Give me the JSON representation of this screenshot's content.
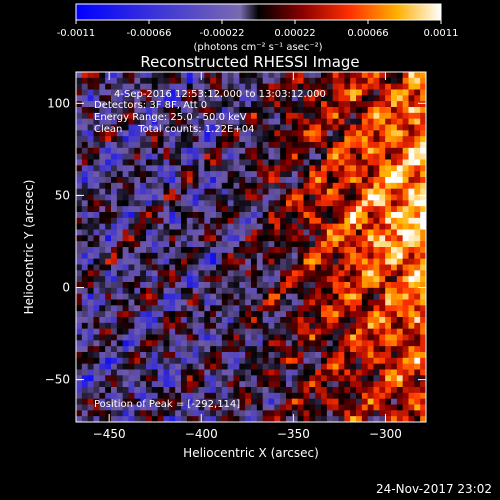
{
  "chart_data": {
    "type": "heatmap",
    "title": "Reconstructed RHESSI Image",
    "xlabel": "Heliocentric X (arcsec)",
    "ylabel": "Heliocentric Y (arcsec)",
    "xlim": [
      -468,
      -278
    ],
    "ylim": [
      -73,
      117
    ],
    "xticks": [
      -450,
      -400,
      -350,
      -300
    ],
    "yticks": [
      -50,
      0,
      50,
      100
    ],
    "colorbar": {
      "ticks": [
        "-0.0011",
        "-0.00066",
        "-0.00022",
        "0.00022",
        "0.00066",
        "0.0011"
      ],
      "range": [
        -0.0011,
        0.0011
      ],
      "units_label": "(photons cm⁻² s⁻¹ asec⁻²)"
    },
    "annotations": [
      "4-Sep-2016 12:53:12.000 to 13:03:12.000",
      "Detectors: 3F 8F, Att 0",
      "Energy Range: 25.0 - 50.0 keV",
      "Clean     Total counts: 1.22E+04"
    ],
    "peak_label": "Position of Peak = [-292,114]",
    "peak": [
      -292,
      114
    ],
    "grid": false
  },
  "footer": {
    "timestamp": "24-Nov-2017 23:02"
  }
}
